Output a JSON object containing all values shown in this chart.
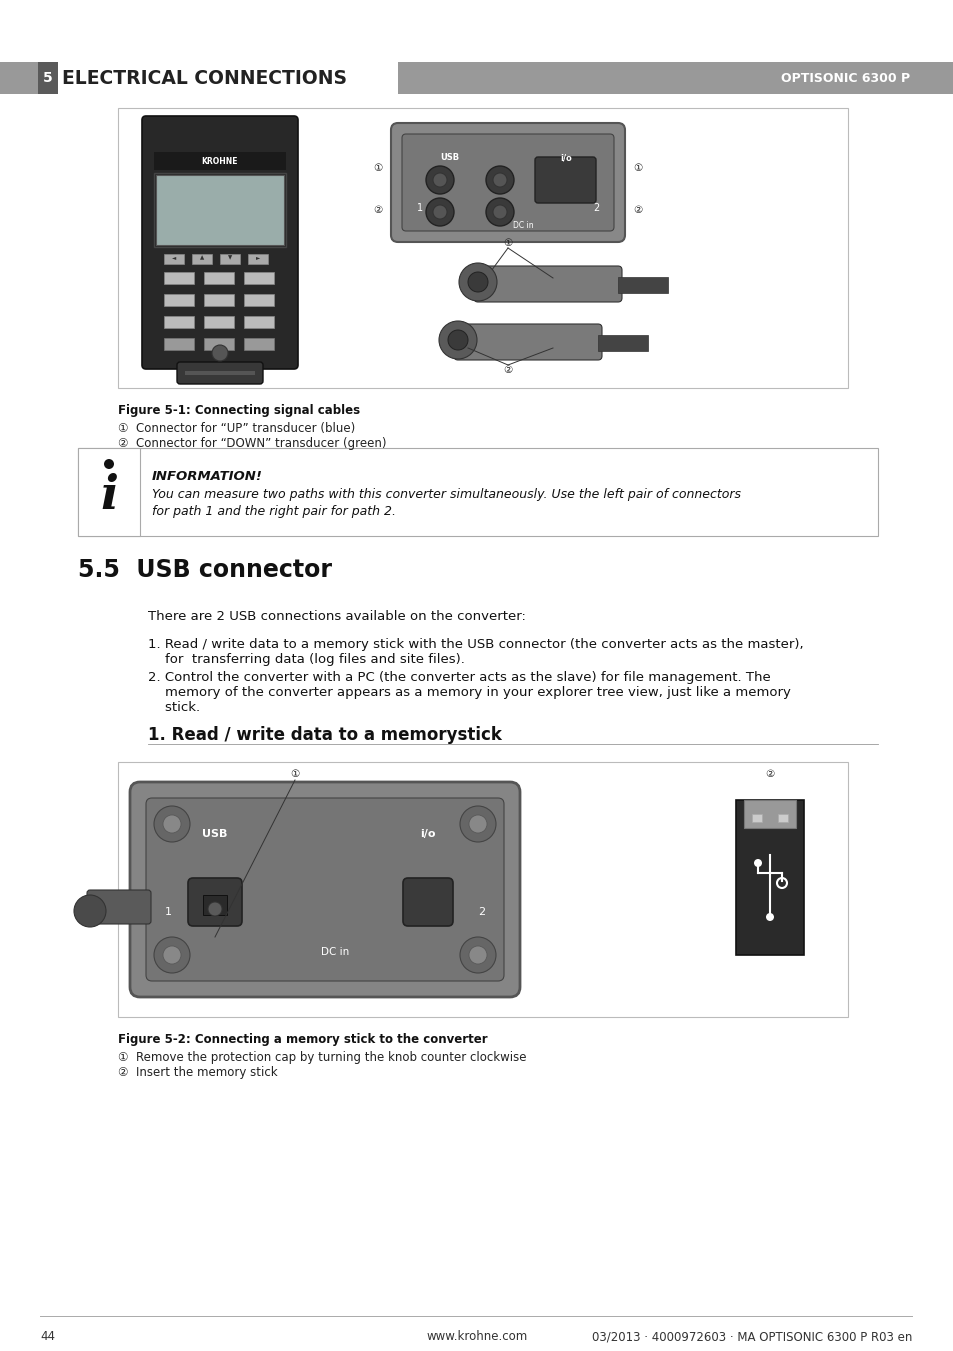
{
  "page_bg": "#ffffff",
  "header_bg": "#999999",
  "header_num_bg": "#5a5a5a",
  "header_text_color": "#ffffff",
  "header_right": "OPTISONIC 6300 P",
  "section_title": "5.5  USB connector",
  "body_text_1": "There are 2 USB connections available on the converter:",
  "body_list_1a": "1. Read / write data to a memory stick with the USB connector (the converter acts as the master),",
  "body_list_1b": "    for  transferring data (log files and site files).",
  "body_list_2a": "2. Control the converter with a PC (the converter acts as the slave) for file management. The",
  "body_list_2b": "    memory of the converter appears as a memory in your explorer tree view, just like a memory",
  "body_list_2c": "    stick.",
  "subsection_title": "1. Read / write data to a memorystick",
  "fig1_caption": "Figure 5-1: Connecting signal cables",
  "fig1_item1": "①  Connector for “UP” transducer (blue)",
  "fig1_item2": "②  Connector for “DOWN” transducer (green)",
  "info_title": "INFORMATION!",
  "info_line1": "You can measure two paths with this converter simultaneously. Use the left pair of connectors",
  "info_line2": "for path 1 and the right pair for path 2.",
  "fig2_caption": "Figure 5-2: Connecting a memory stick to the converter",
  "fig2_item1": "①  Remove the protection cap by turning the knob counter clockwise",
  "fig2_item2": "②  Insert the memory stick",
  "footer_page": "44",
  "footer_center": "www.krohne.com",
  "footer_right": "03/2013 · 4000972603 · MA OPTISONIC 6300 P R03 en",
  "device_color": "#2a2a2a",
  "device_mid": "#3a3a3a",
  "device_light": "#888888",
  "panel_color": "#7a7a7a",
  "panel_dark": "#4a4a4a",
  "connector_color": "#5a5a5a",
  "usb_stick_color": "#2a2a2a",
  "usb_stick_top": "#888888"
}
